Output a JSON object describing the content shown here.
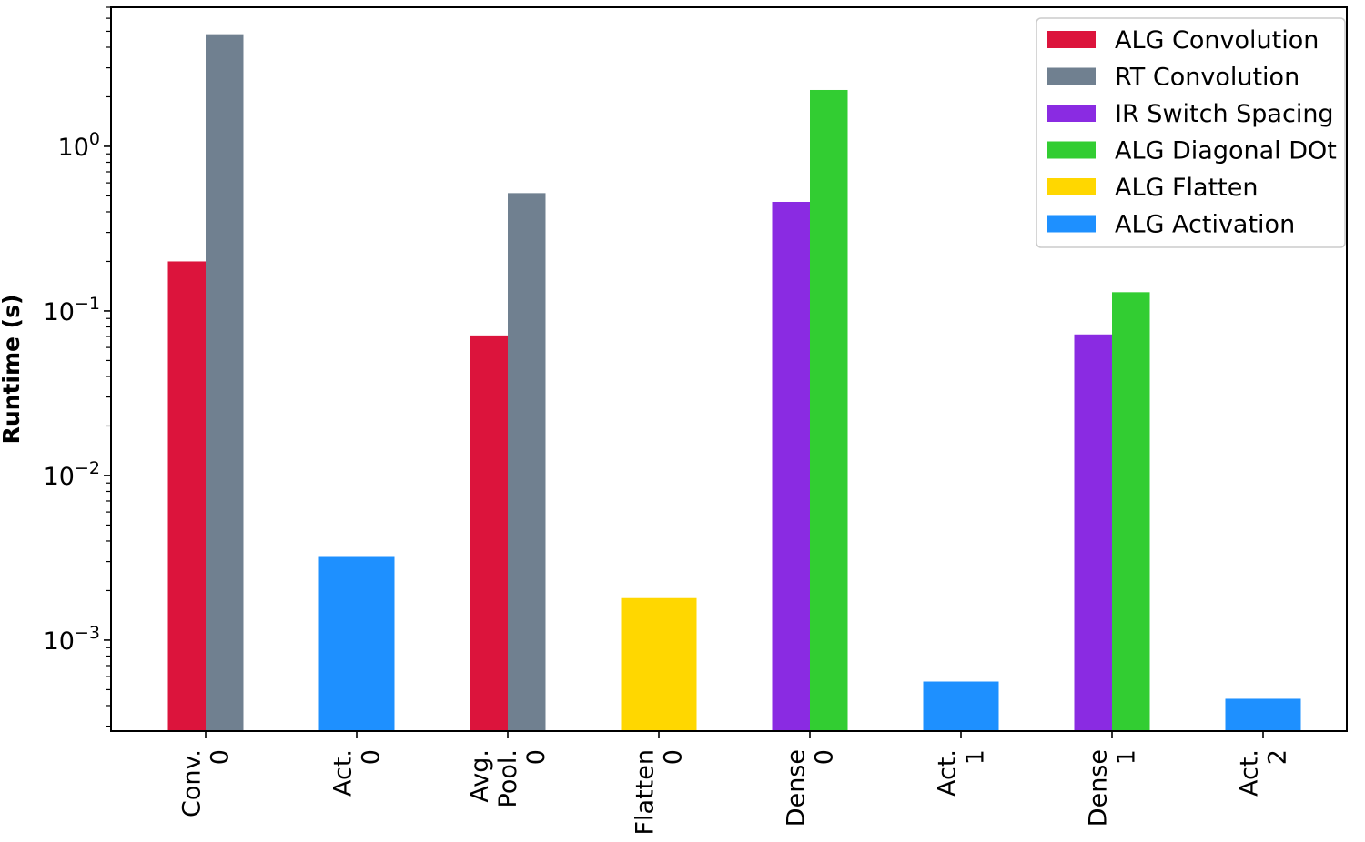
{
  "chart_data": {
    "type": "bar",
    "title": "",
    "xlabel": "",
    "ylabel": "Runtime (s)",
    "yscale": "log",
    "ylim": [
      0.00028,
      7
    ],
    "y_ticks": [
      {
        "value": 1,
        "base": "10",
        "exp": "0"
      },
      {
        "value": 0.1,
        "base": "10",
        "exp": "−1"
      },
      {
        "value": 0.01,
        "base": "10",
        "exp": "−2"
      },
      {
        "value": 0.001,
        "base": "10",
        "exp": "−3"
      }
    ],
    "grid": false,
    "legend_position": "top-right",
    "categories": [
      {
        "line1": "Conv.",
        "line2": "0"
      },
      {
        "line1": "Act.",
        "line2": "0"
      },
      {
        "line1": "Avg.",
        "line1b": "Pool.",
        "line2": "0"
      },
      {
        "line1": "Flatten",
        "line2": "0"
      },
      {
        "line1": "Dense",
        "line2": "0"
      },
      {
        "line1": "Act.",
        "line2": "1"
      },
      {
        "line1": "Dense",
        "line2": "1"
      },
      {
        "line1": "Act.",
        "line2": "2"
      }
    ],
    "series": [
      {
        "name": "ALG Convolution",
        "color": "#DC143C"
      },
      {
        "name": "RT Convolution",
        "color": "#708090"
      },
      {
        "name": "IR Switch Spacing",
        "color": "#8A2BE2"
      },
      {
        "name": "ALG Diagonal DOt",
        "color": "#32CD32"
      },
      {
        "name": "ALG Flatten",
        "color": "#FFD700"
      },
      {
        "name": "ALG Activation",
        "color": "#1E90FF"
      }
    ],
    "bars": [
      {
        "category": 0,
        "series": 0,
        "value": 0.2,
        "slot": "left"
      },
      {
        "category": 0,
        "series": 1,
        "value": 4.8,
        "slot": "right"
      },
      {
        "category": 1,
        "series": 5,
        "value": 0.0032,
        "slot": "single"
      },
      {
        "category": 2,
        "series": 0,
        "value": 0.071,
        "slot": "left"
      },
      {
        "category": 2,
        "series": 1,
        "value": 0.52,
        "slot": "right"
      },
      {
        "category": 3,
        "series": 4,
        "value": 0.0018,
        "slot": "single"
      },
      {
        "category": 4,
        "series": 2,
        "value": 0.46,
        "slot": "left"
      },
      {
        "category": 4,
        "series": 3,
        "value": 2.2,
        "slot": "right"
      },
      {
        "category": 5,
        "series": 5,
        "value": 0.00056,
        "slot": "single"
      },
      {
        "category": 6,
        "series": 2,
        "value": 0.072,
        "slot": "left"
      },
      {
        "category": 6,
        "series": 3,
        "value": 0.13,
        "slot": "right"
      },
      {
        "category": 7,
        "series": 5,
        "value": 0.00044,
        "slot": "single"
      }
    ]
  }
}
